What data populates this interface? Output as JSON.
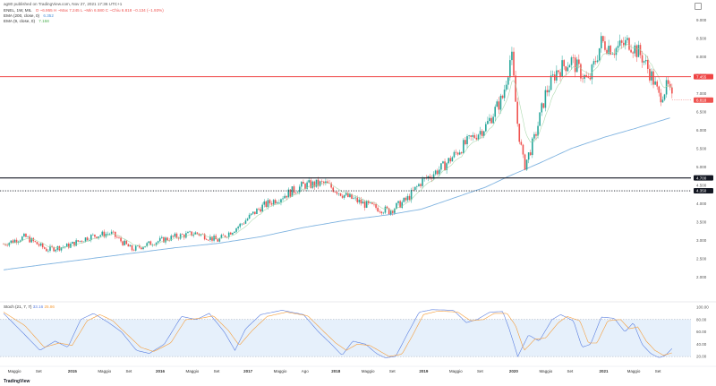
{
  "header": {
    "published_line": "ag80 published on TradingView.com, Nov 27, 2021 17:36 UTC+1",
    "symbol_line": "ENEL, 1W, MIL",
    "ohlc": "O ~6.955  H ~Max 7.245  L ~Min 6.580  C ~Chiu 6.818  −0.134 (−1.93%)",
    "ema200_legend": "EMA (200, close, 0)",
    "ema200_value": "6.352",
    "ema9_legend": "EMA (9, close, 0)",
    "ema9_value": "7.158",
    "stoch_legend": "Stoch (21, 7, 7)",
    "stoch_k_value": "33.16",
    "stoch_d_value": "25.86",
    "brand": "TradingView"
  },
  "colors": {
    "up": "#26a69a",
    "down": "#ef5350",
    "ema200": "#7fb3e0",
    "ema9": "#a5d6a7",
    "red_level": "#ef4444",
    "black_level": "#131722",
    "stoch_k": "#5b7fe0",
    "stoch_d": "#f59d3a",
    "stoch_band": "#e6f0fb"
  },
  "chart_data": [
    {
      "type": "candlestick",
      "title": "ENEL, 1W, MIL",
      "ylim": [
        1.5,
        9.2
      ],
      "y_ticks": [
        "9.000",
        "8.500",
        "8.000",
        "7.500",
        "7.000",
        "6.500",
        "6.000",
        "5.500",
        "5.000",
        "4.500",
        "4.000",
        "3.500",
        "3.000",
        "2.500",
        "2.000"
      ],
      "y_tick_values": [
        9,
        8.5,
        8,
        7.5,
        7,
        6.5,
        6,
        5.5,
        5,
        4.5,
        4,
        3.5,
        3,
        2.5,
        2
      ],
      "x_labels": [
        "Maggio",
        "Set",
        "2015",
        "Maggio",
        "Set",
        "2016",
        "Maggio",
        "Set",
        "2017",
        "Maggio",
        "Ago",
        "2018",
        "Maggio",
        "Set",
        "2019",
        "Maggio",
        "Set",
        "2020",
        "Maggio",
        "Set",
        "2021",
        "Maggio",
        "Set"
      ],
      "x_label_positions": [
        0.2,
        1.5,
        3,
        4.4,
        5.7,
        7.1,
        8.5,
        9.8,
        11.2,
        12.6,
        13.9,
        15.3,
        16.7,
        18,
        19.4,
        20.8,
        22.1,
        23.6,
        25,
        26.3,
        27.8,
        29.1,
        30.4
      ],
      "x_range": [
        0,
        32
      ],
      "horizontal_levels": [
        {
          "label": "7.455",
          "value": 7.455,
          "style": "solid-red"
        },
        {
          "label": "4.700",
          "value": 4.7,
          "style": "solid-black"
        },
        {
          "label": "4.350",
          "value": 4.35,
          "style": "dotted-black"
        }
      ],
      "last_price_label": "6.818",
      "last_price": 6.818,
      "close_anchors": [
        [
          0,
          2.9
        ],
        [
          1,
          3.1
        ],
        [
          2,
          2.75
        ],
        [
          3,
          2.85
        ],
        [
          4,
          3.1
        ],
        [
          5,
          3.2
        ],
        [
          6,
          2.75
        ],
        [
          7,
          2.95
        ],
        [
          8,
          3.1
        ],
        [
          9,
          3.2
        ],
        [
          10,
          3.0
        ],
        [
          11,
          3.4
        ],
        [
          12,
          3.9
        ],
        [
          13,
          4.2
        ],
        [
          14,
          4.5
        ],
        [
          15,
          4.55
        ],
        [
          16,
          4.2
        ],
        [
          17,
          3.95
        ],
        [
          18,
          3.8
        ],
        [
          18.8,
          4.1
        ],
        [
          19.5,
          4.6
        ],
        [
          20.5,
          5.0
        ],
        [
          21.5,
          5.6
        ],
        [
          22.5,
          6.1
        ],
        [
          23.3,
          6.9
        ],
        [
          23.7,
          8.1
        ],
        [
          24.0,
          6.1
        ],
        [
          24.3,
          5.0
        ],
        [
          24.8,
          5.8
        ],
        [
          25.3,
          7.0
        ],
        [
          25.8,
          7.6
        ],
        [
          26.5,
          7.9
        ],
        [
          27.3,
          7.3
        ],
        [
          27.9,
          8.4
        ],
        [
          28.5,
          8.2
        ],
        [
          29.2,
          8.4
        ],
        [
          29.8,
          8.0
        ],
        [
          30.3,
          7.4
        ],
        [
          30.6,
          6.9
        ],
        [
          31.0,
          7.2
        ],
        [
          31.2,
          6.82
        ]
      ],
      "ema200_anchors": [
        [
          0,
          2.2
        ],
        [
          2,
          2.35
        ],
        [
          4,
          2.5
        ],
        [
          6,
          2.65
        ],
        [
          8,
          2.8
        ],
        [
          10,
          2.92
        ],
        [
          12,
          3.1
        ],
        [
          14,
          3.35
        ],
        [
          16,
          3.55
        ],
        [
          18,
          3.7
        ],
        [
          19.5,
          3.85
        ],
        [
          21,
          4.15
        ],
        [
          22.5,
          4.45
        ],
        [
          23.6,
          4.75
        ],
        [
          25,
          5.1
        ],
        [
          26.5,
          5.5
        ],
        [
          28,
          5.8
        ],
        [
          29.5,
          6.05
        ],
        [
          31.2,
          6.35
        ]
      ]
    },
    {
      "type": "line",
      "title": "Stoch (21, 7, 7)",
      "ylim": [
        10,
        100
      ],
      "y_ticks": [
        "100.00",
        "80.00",
        "60.00",
        "40.00",
        "20.00"
      ],
      "y_tick_values": [
        100,
        80,
        60,
        40,
        20
      ],
      "band": [
        20,
        80
      ],
      "series": [
        {
          "name": "K",
          "values_anchors": [
            [
              0,
              90
            ],
            [
              1,
              55
            ],
            [
              1.7,
              30
            ],
            [
              2.4,
              45
            ],
            [
              3,
              35
            ],
            [
              3.6,
              80
            ],
            [
              4.2,
              90
            ],
            [
              4.9,
              75
            ],
            [
              5.5,
              60
            ],
            [
              6.2,
              30
            ],
            [
              6.8,
              25
            ],
            [
              7.5,
              40
            ],
            [
              8.3,
              85
            ],
            [
              9,
              80
            ],
            [
              9.6,
              90
            ],
            [
              10.3,
              60
            ],
            [
              10.8,
              30
            ],
            [
              11.3,
              65
            ],
            [
              12,
              88
            ],
            [
              13,
              95
            ],
            [
              14,
              88
            ],
            [
              14.7,
              60
            ],
            [
              15.3,
              40
            ],
            [
              15.8,
              22
            ],
            [
              16.3,
              45
            ],
            [
              16.9,
              40
            ],
            [
              17.4,
              25
            ],
            [
              17.8,
              18
            ],
            [
              18.3,
              20
            ],
            [
              18.9,
              60
            ],
            [
              19.4,
              92
            ],
            [
              20,
              96
            ],
            [
              21,
              95
            ],
            [
              21.6,
              75
            ],
            [
              22.1,
              80
            ],
            [
              22.7,
              92
            ],
            [
              23.3,
              93
            ],
            [
              23.6,
              65
            ],
            [
              24,
              20
            ],
            [
              24.5,
              55
            ],
            [
              25,
              45
            ],
            [
              25.6,
              80
            ],
            [
              26,
              88
            ],
            [
              26.6,
              78
            ],
            [
              27,
              35
            ],
            [
              27.4,
              40
            ],
            [
              27.9,
              84
            ],
            [
              28.5,
              82
            ],
            [
              29,
              60
            ],
            [
              29.4,
              75
            ],
            [
              29.8,
              40
            ],
            [
              30.2,
              25
            ],
            [
              30.6,
              18
            ],
            [
              30.9,
              22
            ],
            [
              31.2,
              33
            ]
          ]
        },
        {
          "name": "D",
          "values_anchors": [
            [
              0,
              92
            ],
            [
              1,
              70
            ],
            [
              1.9,
              35
            ],
            [
              2.6,
              42
            ],
            [
              3.2,
              38
            ],
            [
              3.9,
              78
            ],
            [
              4.5,
              88
            ],
            [
              5.1,
              78
            ],
            [
              5.7,
              58
            ],
            [
              6.4,
              35
            ],
            [
              7.0,
              28
            ],
            [
              7.8,
              42
            ],
            [
              8.5,
              80
            ],
            [
              9.2,
              82
            ],
            [
              9.8,
              86
            ],
            [
              10.5,
              62
            ],
            [
              11.0,
              38
            ],
            [
              11.6,
              62
            ],
            [
              12.3,
              85
            ],
            [
              13.2,
              92
            ],
            [
              14.2,
              86
            ],
            [
              14.9,
              62
            ],
            [
              15.5,
              42
            ],
            [
              16.0,
              30
            ],
            [
              16.5,
              40
            ],
            [
              17.1,
              38
            ],
            [
              17.6,
              28
            ],
            [
              18.0,
              20
            ],
            [
              18.6,
              24
            ],
            [
              19.1,
              55
            ],
            [
              19.6,
              88
            ],
            [
              20.3,
              94
            ],
            [
              21.2,
              92
            ],
            [
              21.8,
              78
            ],
            [
              22.4,
              80
            ],
            [
              22.9,
              90
            ],
            [
              23.5,
              90
            ],
            [
              23.9,
              70
            ],
            [
              24.3,
              30
            ],
            [
              24.8,
              48
            ],
            [
              25.3,
              50
            ],
            [
              25.9,
              75
            ],
            [
              26.3,
              85
            ],
            [
              26.9,
              78
            ],
            [
              27.3,
              42
            ],
            [
              27.7,
              42
            ],
            [
              28.2,
              78
            ],
            [
              28.8,
              80
            ],
            [
              29.2,
              65
            ],
            [
              29.6,
              68
            ],
            [
              30.0,
              45
            ],
            [
              30.4,
              30
            ],
            [
              30.8,
              22
            ],
            [
              31.1,
              25
            ],
            [
              31.2,
              26
            ]
          ]
        }
      ]
    }
  ]
}
